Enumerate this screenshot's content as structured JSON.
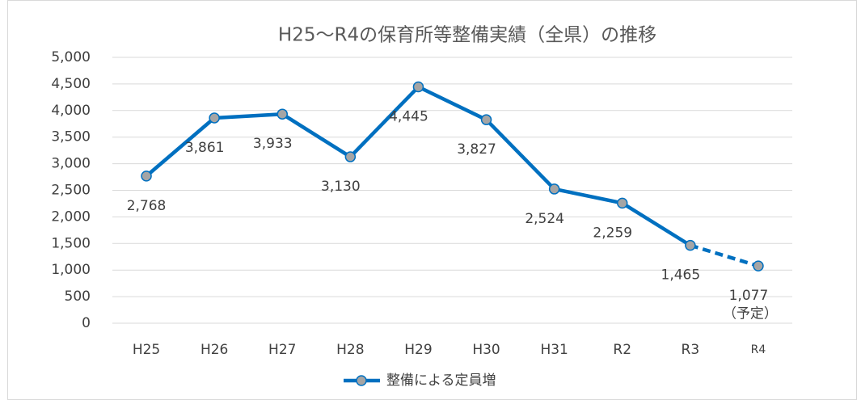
{
  "chart_data": {
    "type": "line",
    "title": "H25〜R4の保育所等整備実績（全県）の推移",
    "categories": [
      "H25",
      "H26",
      "H27",
      "H28",
      "H29",
      "H30",
      "H31",
      "R2",
      "R3",
      "R4"
    ],
    "series": [
      {
        "name": "整備による定員増",
        "color": "#0070c0",
        "marker_color": "#a5a5a5",
        "values": [
          2768,
          3861,
          3933,
          3130,
          4445,
          3827,
          2524,
          2259,
          1465,
          1077
        ],
        "value_labels": [
          "2,768",
          "3,861",
          "3,933",
          "3,130",
          "4,445",
          "3,827",
          "2,524",
          "2,259",
          "1,465",
          "1,077"
        ]
      }
    ],
    "annotation": "（予定）",
    "dashed_last": true,
    "ylim": [
      0,
      5000
    ],
    "yticks": [
      0,
      500,
      {
        "value": 1000,
        "label": "1,000"
      },
      {
        "value": 1500,
        "label": "1,500"
      },
      {
        "value": 2000,
        "label": "2,000"
      },
      {
        "value": 2500,
        "label": "2,500"
      },
      {
        "value": 3000,
        "label": "3,000"
      },
      {
        "value": 3500,
        "label": "3,500"
      },
      {
        "value": 4000,
        "label": "4,000"
      },
      {
        "value": 4500,
        "label": "4,500"
      },
      {
        "value": 5000,
        "label": "5,000"
      }
    ],
    "grid": true,
    "legend": "bottom"
  }
}
